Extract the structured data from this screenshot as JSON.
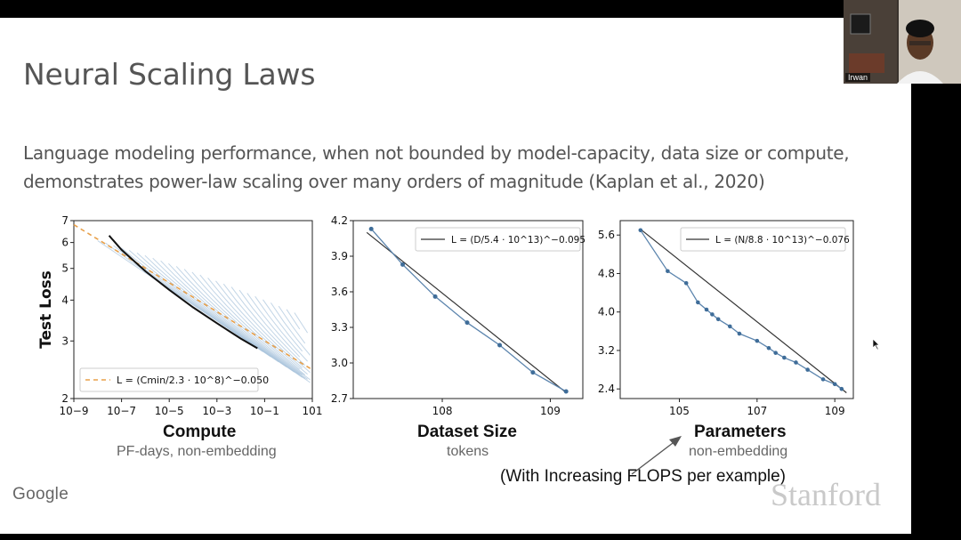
{
  "slide": {
    "title": "Neural Scaling Laws",
    "subtitle_line1": "Language modeling performance, when not bounded by model-capacity, data size or compute,",
    "subtitle_line2": "demonstrates power-law scaling over many orders of magnitude (Kaplan et al., 2020)",
    "note": "(With Increasing FLOPS per example)",
    "footer_left": "Google",
    "footer_right": "Stanford"
  },
  "video": {
    "participant_name": "Irwan"
  },
  "chart_data": [
    {
      "type": "line",
      "title": "Compute",
      "subtitle": "PF-days, non-embedding",
      "ylabel": "Test Loss",
      "xscale": "log",
      "yscale": "log",
      "xlim": [
        1e-09,
        10
      ],
      "ylim": [
        2,
        7
      ],
      "xticks": [
        "10−9",
        "10−7",
        "10−5",
        "10−3",
        "10−1",
        "101"
      ],
      "yticks": [
        "2",
        "3",
        "4",
        "5",
        "6",
        "7"
      ],
      "legend": "L = (Cmin/2.3 · 10^8)^−0.050",
      "legend_position": "bottom-left",
      "frontier": {
        "x": [
          3e-08,
          1e-07,
          1e-06,
          1e-05,
          0.0001,
          0.001,
          0.01,
          0.05
        ],
        "y": [
          6.3,
          5.7,
          4.9,
          4.3,
          3.8,
          3.4,
          3.05,
          2.85
        ]
      },
      "fit": {
        "x": [
          1e-09,
          10
        ],
        "y": [
          6.8,
          2.45
        ],
        "color": "#e8a04a",
        "style": "dashed"
      }
    },
    {
      "type": "line",
      "title": "Dataset Size",
      "subtitle": "tokens",
      "xscale": "log",
      "xlim": [
        15000000.0,
        2000000000.0
      ],
      "ylim": [
        2.7,
        4.2
      ],
      "xticks": [
        "108",
        "109"
      ],
      "yticks": [
        "2.7",
        "3.0",
        "3.3",
        "3.6",
        "3.9",
        "4.2"
      ],
      "legend": "L = (D/5.4 · 10^13)^−0.095",
      "legend_position": "top-right",
      "points": {
        "x": [
          22000000.0,
          43000000.0,
          86000000.0,
          170000000.0,
          340000000.0,
          690000000.0,
          1400000000.0
        ],
        "y": [
          4.13,
          3.83,
          3.56,
          3.34,
          3.15,
          2.92,
          2.76
        ]
      },
      "fit": {
        "x": [
          20000000.0,
          1400000000.0
        ],
        "y": [
          4.1,
          2.75
        ]
      }
    },
    {
      "type": "line",
      "title": "Parameters",
      "subtitle": "non-embedding",
      "xscale": "log",
      "xlim": [
        3000.0,
        3000000000.0
      ],
      "ylim": [
        2.2,
        5.9
      ],
      "xticks": [
        "105",
        "107",
        "109"
      ],
      "yticks": [
        "2.4",
        "3.2",
        "4.0",
        "4.8",
        "5.6"
      ],
      "legend": "L = (N/8.8 · 10^13)^−0.076",
      "legend_position": "top-right",
      "points": {
        "x": [
          10000.0,
          50000.0,
          150000.0,
          300000.0,
          500000.0,
          700000.0,
          1000000.0,
          2000000.0,
          3500000.0,
          10000000.0,
          20000000.0,
          30000000.0,
          50000000.0,
          100000000.0,
          200000000.0,
          500000000.0,
          1000000000.0,
          1500000000.0
        ],
        "y": [
          5.7,
          4.85,
          4.6,
          4.2,
          4.05,
          3.95,
          3.85,
          3.7,
          3.55,
          3.4,
          3.25,
          3.15,
          3.05,
          2.95,
          2.8,
          2.6,
          2.5,
          2.4
        ]
      },
      "fit": {
        "x": [
          10000.0,
          2000000000.0
        ],
        "y": [
          5.72,
          2.32
        ]
      }
    }
  ]
}
